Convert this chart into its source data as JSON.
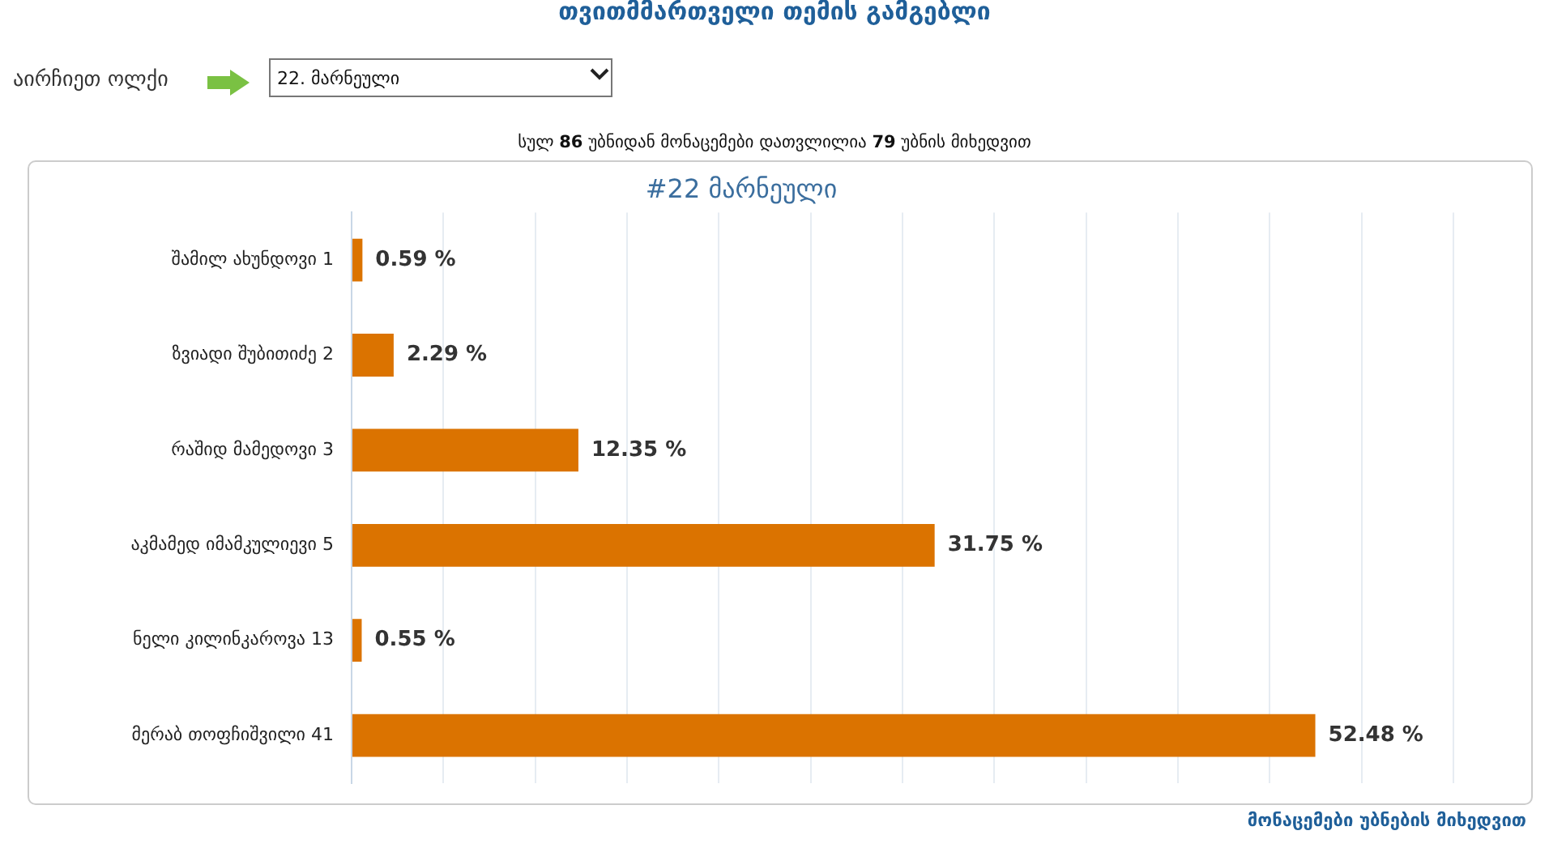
{
  "chart_data": {
    "type": "bar",
    "orientation": "horizontal",
    "title": "#22 მარნეული",
    "categories": [
      "შამილ ახუნდოვი 1",
      "ზვიადი შუბითიძე 2",
      "რაშიდ მამედოვი 3",
      "აკმამედ იმამკულიევი 5",
      "ნელი კილინკაროვა 13",
      "მერაბ თოფჩიშვილი 41"
    ],
    "values": [
      0.59,
      2.29,
      12.35,
      31.75,
      0.55,
      52.48
    ],
    "value_labels": [
      "0.59 %",
      "2.29 %",
      "12.35 %",
      "31.75 %",
      "0.55 %",
      "52.48 %"
    ],
    "color": "#db7300",
    "xlim": [
      0,
      60
    ],
    "xticks": [
      {
        "value": 0,
        "label": null
      },
      {
        "value": 5,
        "label": null
      },
      {
        "value": 10,
        "label": null
      },
      {
        "value": 15,
        "label": null
      },
      {
        "value": 20,
        "label": null
      },
      {
        "value": 25,
        "label": null
      },
      {
        "value": 30,
        "label": null
      },
      {
        "value": 35,
        "label": null
      },
      {
        "value": 40,
        "label": null
      },
      {
        "value": 45,
        "label": null
      },
      {
        "value": 50,
        "label": null
      },
      {
        "value": 55,
        "label": null
      },
      {
        "value": 60,
        "label": null
      }
    ],
    "grid": "x",
    "legend": false,
    "tick_labels": "y",
    "annotations": [
      "თვითმმართველი თემის გამგებლი",
      "აირჩიეთ ოლქი",
      "22. მარნეული",
      "სულ 86 უბნიდან მონაცემები დათვლილია 79 უბნის მიხედვით",
      "მონაცემები უბნების მიხედვით"
    ]
  }
}
